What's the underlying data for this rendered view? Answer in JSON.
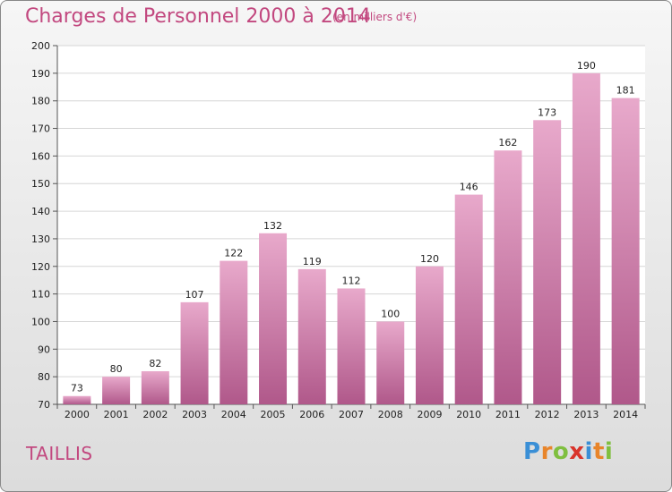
{
  "title": "Charges de Personnel 2000 à 2014",
  "unit_note": "(en milliers d'€)",
  "commune": "TAILLIS",
  "logo": {
    "letters": [
      "P",
      "r",
      "o",
      "x",
      "i",
      "t",
      "i"
    ],
    "colors": [
      "#3a8fd6",
      "#e8852b",
      "#7fbf3f",
      "#d9342b",
      "#3a8fd6",
      "#e8852b",
      "#7fbf3f"
    ]
  },
  "colors": {
    "accent": "#c2487f",
    "bar_top": "#e8a9cb",
    "bar_bottom": "#b0588a"
  },
  "chart_data": {
    "type": "bar",
    "categories": [
      "2000",
      "2001",
      "2002",
      "2003",
      "2004",
      "2005",
      "2006",
      "2007",
      "2008",
      "2009",
      "2010",
      "2011",
      "2012",
      "2013",
      "2014"
    ],
    "values": [
      73,
      80,
      82,
      107,
      122,
      132,
      119,
      112,
      100,
      120,
      146,
      162,
      173,
      190,
      181
    ],
    "ylim": [
      70,
      200
    ],
    "yticks": [
      70,
      80,
      90,
      100,
      110,
      120,
      130,
      140,
      150,
      160,
      170,
      180,
      190,
      200
    ],
    "grid": true
  }
}
